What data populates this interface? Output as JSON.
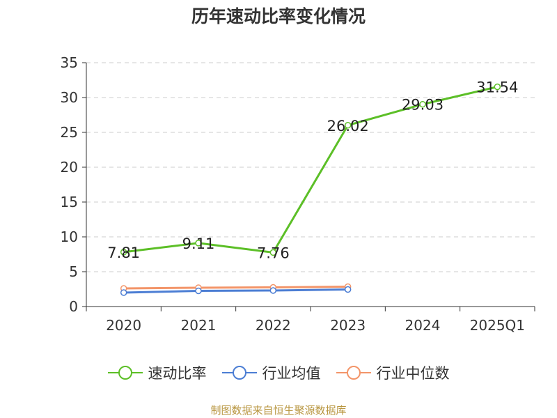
{
  "chart_data": {
    "type": "line",
    "title": "历年速动比率变化情况",
    "categories": [
      "2020",
      "2021",
      "2022",
      "2023",
      "2024",
      "2025Q1"
    ],
    "ylim": [
      0,
      35
    ],
    "yticks": [
      "0",
      "5",
      "10",
      "15",
      "20",
      "25",
      "30",
      "35"
    ],
    "grid": true,
    "legend_position": "bottom",
    "series": [
      {
        "name": "速动比率",
        "color": "#5cbf27",
        "values": [
          7.81,
          9.11,
          7.76,
          26.02,
          29.03,
          31.54
        ],
        "data_labels": [
          "7.81",
          "9.11",
          "7.76",
          "26.02",
          "29.03",
          "31.54"
        ]
      },
      {
        "name": "行业均值",
        "color": "#4c7ed4",
        "values": [
          2.0,
          2.25,
          2.3,
          2.45,
          null,
          null
        ]
      },
      {
        "name": "行业中位数",
        "color": "#f39569",
        "values": [
          2.6,
          2.7,
          2.75,
          2.85,
          null,
          null
        ]
      }
    ]
  },
  "source_text": "制图数据来自恒生聚源数据库"
}
